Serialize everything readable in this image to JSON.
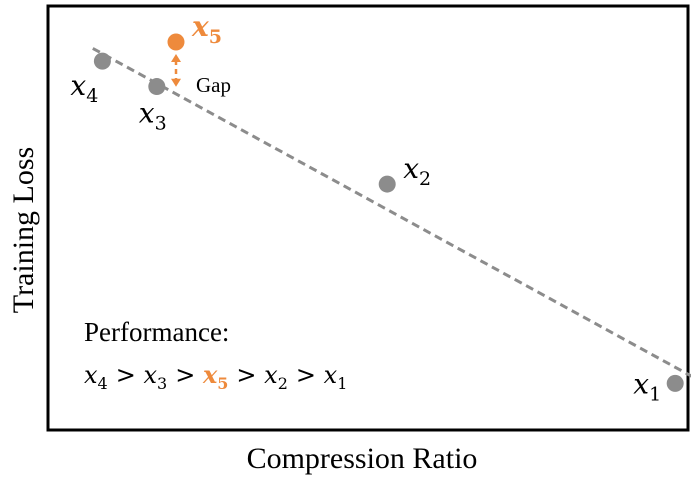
{
  "chart_data": {
    "type": "scatter",
    "xlabel": "Compression Ratio",
    "ylabel": "Training Loss",
    "xlim": [
      0,
      10
    ],
    "ylim": [
      0,
      10
    ],
    "grid": false,
    "points": [
      {
        "name": "x",
        "sub": "1",
        "x": 9.8,
        "y": 1.1,
        "highlight": false,
        "label_pos": "left"
      },
      {
        "name": "x",
        "sub": "2",
        "x": 5.3,
        "y": 5.8,
        "highlight": false,
        "label_pos": "right"
      },
      {
        "name": "x",
        "sub": "3",
        "x": 1.7,
        "y": 8.1,
        "highlight": false,
        "label_pos": "below"
      },
      {
        "name": "x",
        "sub": "4",
        "x": 0.85,
        "y": 8.7,
        "highlight": false,
        "label_pos": "below-left"
      },
      {
        "name": "x",
        "sub": "5",
        "x": 2.0,
        "y": 9.15,
        "highlight": true,
        "label_pos": "right"
      }
    ],
    "trend_line": {
      "x": [
        0.7,
        10.2
      ],
      "y": [
        9.0,
        1.15
      ],
      "style": "dashed"
    },
    "gap_annotation": {
      "label": "Gap",
      "from_point": "5",
      "to_y": 8.0
    },
    "performance": {
      "title": "Performance:",
      "order": [
        {
          "name": "x",
          "sub": "4",
          "highlight": false
        },
        {
          "name": "x",
          "sub": "3",
          "highlight": false
        },
        {
          "name": "x",
          "sub": "5",
          "highlight": true
        },
        {
          "name": "x",
          "sub": "2",
          "highlight": false
        },
        {
          "name": "x",
          "sub": "1",
          "highlight": false
        }
      ],
      "operator": ">"
    },
    "colors": {
      "point": "#8c8c8c",
      "highlight": "#ee8a3c",
      "trend": "#8c8c8c",
      "axis": "#000000"
    }
  }
}
